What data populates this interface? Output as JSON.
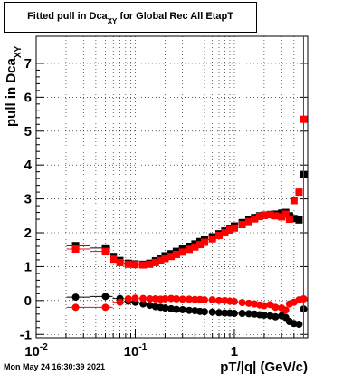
{
  "title": {
    "prefix": "Fitted pull in Dca",
    "subscript": "XY",
    "suffix": " for Global Rec All EtapT"
  },
  "timestamp": "Mon May 24 16:30:39 2021",
  "chart_data": {
    "type": "scatter",
    "title": "Fitted pull in Dca_XY for Global Rec All EtapT",
    "xlabel": "pT/|q| (GeV/c)",
    "ylabel": "pull in Dca",
    "ylabel_subscript": "XY",
    "xscale": "log",
    "xlim": [
      0.01,
      5.5
    ],
    "ylim": [
      -1.1,
      7.8
    ],
    "grid": true,
    "x_tick_labels": [
      {
        "v": 0.01,
        "base": "10",
        "exp": "-2"
      },
      {
        "v": 0.1,
        "base": "10",
        "exp": "-1"
      },
      {
        "v": 1,
        "base": "1",
        "exp": ""
      }
    ],
    "y_tick_labels": [
      "-1",
      "0",
      "1",
      "2",
      "3",
      "4",
      "5",
      "6",
      "7"
    ],
    "series": [
      {
        "color": "#000000",
        "marker": "square",
        "points": [
          [
            0.025,
            1.62
          ],
          [
            0.05,
            1.55
          ],
          [
            0.06,
            1.3
          ],
          [
            0.07,
            1.18
          ],
          [
            0.085,
            1.1
          ],
          [
            0.1,
            1.08
          ],
          [
            0.12,
            1.07
          ],
          [
            0.14,
            1.1
          ],
          [
            0.16,
            1.17
          ],
          [
            0.18,
            1.25
          ],
          [
            0.2,
            1.32
          ],
          [
            0.23,
            1.38
          ],
          [
            0.26,
            1.45
          ],
          [
            0.3,
            1.52
          ],
          [
            0.35,
            1.6
          ],
          [
            0.4,
            1.67
          ],
          [
            0.45,
            1.74
          ],
          [
            0.5,
            1.8
          ],
          [
            0.6,
            1.88
          ],
          [
            0.7,
            1.97
          ],
          [
            0.8,
            2.05
          ],
          [
            0.9,
            2.13
          ],
          [
            1.0,
            2.2
          ],
          [
            1.2,
            2.3
          ],
          [
            1.4,
            2.38
          ],
          [
            1.6,
            2.45
          ],
          [
            1.8,
            2.5
          ],
          [
            2.0,
            2.52
          ],
          [
            2.3,
            2.54
          ],
          [
            2.6,
            2.55
          ],
          [
            3.0,
            2.58
          ],
          [
            3.3,
            2.6
          ],
          [
            3.6,
            2.5
          ],
          [
            4.0,
            2.42
          ],
          [
            4.5,
            2.38
          ],
          [
            5.0,
            3.72
          ]
        ]
      },
      {
        "color": "#ff0000",
        "marker": "square",
        "points": [
          [
            0.025,
            1.52
          ],
          [
            0.05,
            1.45
          ],
          [
            0.06,
            1.22
          ],
          [
            0.07,
            1.12
          ],
          [
            0.085,
            1.07
          ],
          [
            0.1,
            1.06
          ],
          [
            0.12,
            1.05
          ],
          [
            0.14,
            1.07
          ],
          [
            0.16,
            1.12
          ],
          [
            0.18,
            1.18
          ],
          [
            0.2,
            1.24
          ],
          [
            0.23,
            1.3
          ],
          [
            0.26,
            1.36
          ],
          [
            0.3,
            1.43
          ],
          [
            0.35,
            1.51
          ],
          [
            0.4,
            1.58
          ],
          [
            0.45,
            1.65
          ],
          [
            0.5,
            1.72
          ],
          [
            0.6,
            1.82
          ],
          [
            0.7,
            1.92
          ],
          [
            0.8,
            2.0
          ],
          [
            0.9,
            2.08
          ],
          [
            1.0,
            2.14
          ],
          [
            1.2,
            2.24
          ],
          [
            1.4,
            2.33
          ],
          [
            1.6,
            2.41
          ],
          [
            1.8,
            2.48
          ],
          [
            2.0,
            2.51
          ],
          [
            2.3,
            2.53
          ],
          [
            2.6,
            2.5
          ],
          [
            3.0,
            2.47
          ],
          [
            3.3,
            2.55
          ],
          [
            3.6,
            2.4
          ],
          [
            4.0,
            2.95
          ],
          [
            4.5,
            3.2
          ],
          [
            5.0,
            5.35
          ]
        ]
      },
      {
        "color": "#000000",
        "marker": "circle",
        "points": [
          [
            0.025,
            0.1
          ],
          [
            0.05,
            0.12
          ],
          [
            0.07,
            0.06
          ],
          [
            0.085,
            -0.02
          ],
          [
            0.1,
            -0.05
          ],
          [
            0.12,
            -0.1
          ],
          [
            0.14,
            -0.14
          ],
          [
            0.16,
            -0.18
          ],
          [
            0.18,
            -0.2
          ],
          [
            0.2,
            -0.22
          ],
          [
            0.23,
            -0.24
          ],
          [
            0.26,
            -0.26
          ],
          [
            0.3,
            -0.27
          ],
          [
            0.35,
            -0.29
          ],
          [
            0.4,
            -0.3
          ],
          [
            0.45,
            -0.32
          ],
          [
            0.5,
            -0.33
          ],
          [
            0.6,
            -0.34
          ],
          [
            0.7,
            -0.36
          ],
          [
            0.8,
            -0.37
          ],
          [
            0.9,
            -0.37
          ],
          [
            1.0,
            -0.38
          ],
          [
            1.2,
            -0.38
          ],
          [
            1.4,
            -0.39
          ],
          [
            1.6,
            -0.4
          ],
          [
            1.8,
            -0.42
          ],
          [
            2.0,
            -0.43
          ],
          [
            2.3,
            -0.45
          ],
          [
            2.6,
            -0.48
          ],
          [
            3.0,
            -0.45
          ],
          [
            3.3,
            -0.5
          ],
          [
            3.6,
            -0.62
          ],
          [
            4.0,
            -0.68
          ],
          [
            4.5,
            -0.7
          ],
          [
            5.0,
            -0.25
          ]
        ]
      },
      {
        "color": "#ff0000",
        "marker": "circle",
        "points": [
          [
            0.025,
            -0.2
          ],
          [
            0.05,
            -0.2
          ],
          [
            0.07,
            -0.05
          ],
          [
            0.085,
            0.05
          ],
          [
            0.1,
            0.07
          ],
          [
            0.12,
            0.06
          ],
          [
            0.14,
            0.05
          ],
          [
            0.16,
            0.05
          ],
          [
            0.18,
            0.04
          ],
          [
            0.2,
            0.05
          ],
          [
            0.23,
            0.06
          ],
          [
            0.26,
            0.05
          ],
          [
            0.3,
            0.04
          ],
          [
            0.35,
            0.04
          ],
          [
            0.4,
            0.03
          ],
          [
            0.45,
            0.03
          ],
          [
            0.5,
            0.02
          ],
          [
            0.6,
            0.02
          ],
          [
            0.7,
            0.0
          ],
          [
            0.8,
            0.0
          ],
          [
            0.9,
            -0.02
          ],
          [
            1.0,
            -0.03
          ],
          [
            1.2,
            -0.06
          ],
          [
            1.4,
            -0.08
          ],
          [
            1.6,
            -0.1
          ],
          [
            1.8,
            -0.13
          ],
          [
            2.0,
            -0.15
          ],
          [
            2.3,
            -0.12
          ],
          [
            2.6,
            -0.2
          ],
          [
            3.0,
            -0.22
          ],
          [
            3.3,
            -0.28
          ],
          [
            3.6,
            -0.1
          ],
          [
            4.0,
            -0.05
          ],
          [
            4.5,
            0.02
          ],
          [
            5.0,
            0.05
          ]
        ]
      }
    ]
  }
}
